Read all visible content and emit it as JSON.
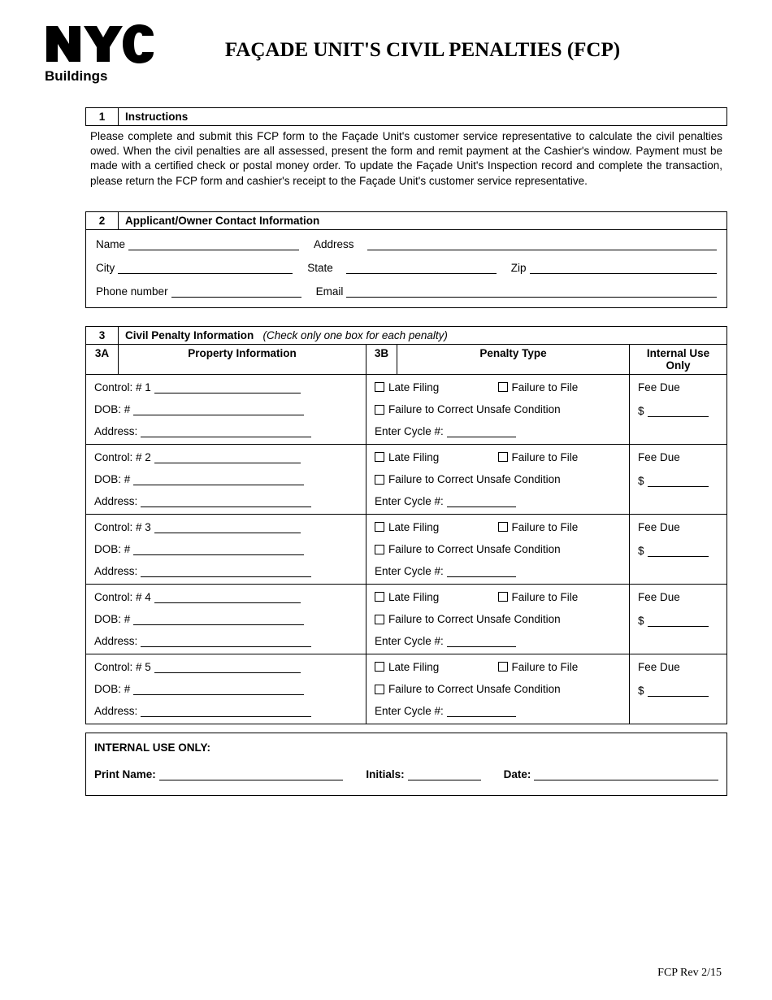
{
  "logo": {
    "text": "NYC",
    "sub": "Buildings"
  },
  "title": "FAÇADE UNIT'S CIVIL PENALTIES (FCP)",
  "section1": {
    "num": "1",
    "title": "Instructions",
    "body": "Please complete and submit this FCP form to the Façade Unit's customer service representative to calculate the civil penalties owed. When the civil penalties are all assessed, present the form and remit payment at the Cashier's window. Payment must be made with a certified check or postal money order. To update the Façade Unit's Inspection record and complete the transaction, please return the FCP form and cashier's receipt to the Façade Unit's customer service representative."
  },
  "section2": {
    "num": "2",
    "title": "Applicant/Owner Contact Information",
    "labels": {
      "name": "Name",
      "address": "Address",
      "city": "City",
      "state": "State",
      "zip": "Zip",
      "phone": "Phone number",
      "email": "Email"
    }
  },
  "section3": {
    "num": "3",
    "title": "Civil Penalty Information",
    "note": "(Check only one box for each penalty)",
    "col3a": "3A",
    "col_pi": "Property Information",
    "col3b": "3B",
    "col_pt": "Penalty Type",
    "col_iu": "Internal Use Only",
    "rows": [
      {
        "control": "Control: # 1"
      },
      {
        "control": "Control: # 2"
      },
      {
        "control": "Control: # 3"
      },
      {
        "control": "Control: # 4"
      },
      {
        "control": "Control: # 5"
      }
    ],
    "labels": {
      "dob": "DOB: #",
      "address": "Address:",
      "late": "Late Filing",
      "fail_file": "Failure to File",
      "fail_correct": "Failure to Correct Unsafe Condition",
      "cycle": "Enter Cycle #:",
      "fee_due": "Fee Due",
      "dollar": "$"
    }
  },
  "internal": {
    "title": "INTERNAL USE ONLY:",
    "print_name": "Print Name:",
    "initials": "Initials:",
    "date": "Date:"
  },
  "footer": "FCP Rev 2/15"
}
